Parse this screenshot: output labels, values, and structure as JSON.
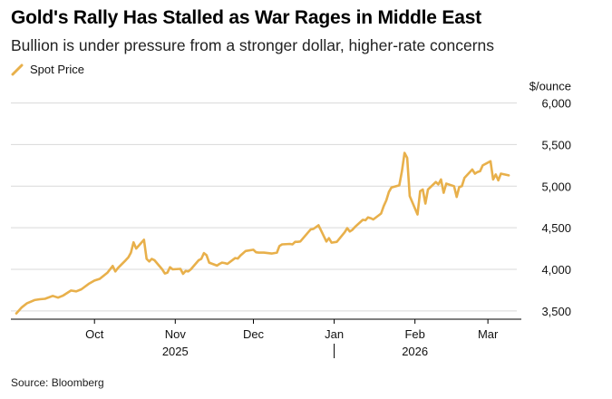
{
  "title": "Gold's Rally Has Stalled as War Rages in Middle East",
  "subtitle": "Bullion is under pressure from a stronger dollar, higher-rate concerns",
  "source": "Source: Bloomberg",
  "colors": {
    "line": "#E8B04B",
    "grid": "#D9D9D9",
    "axis": "#000000"
  },
  "chart_data": {
    "type": "line",
    "title": "Gold's Rally Has Stalled as War Rages in Middle East",
    "subtitle": "Bullion is under pressure from a stronger dollar, higher-rate concerns",
    "ylabel": "$/ounce",
    "ylim": [
      3400,
      6050
    ],
    "yticks": [
      3500,
      4000,
      4500,
      5000,
      5500,
      6000
    ],
    "ytick_labels": [
      "3,500",
      "4,000",
      "4,500",
      "5,000",
      "5,500",
      "6,000"
    ],
    "xlim": [
      "2025-09-01",
      "2026-03-10"
    ],
    "xticks": [
      {
        "date": "2025-10-01",
        "label": "Oct"
      },
      {
        "date": "2025-11-01",
        "label": "Nov"
      },
      {
        "date": "2025-12-01",
        "label": "Dec"
      },
      {
        "date": "2026-01-01",
        "label": "Jan"
      },
      {
        "date": "2026-02-01",
        "label": "Feb"
      },
      {
        "date": "2026-03-01",
        "label": "Mar"
      }
    ],
    "year_labels": [
      {
        "date": "2025-11-01",
        "label": "2025"
      },
      {
        "date": "2026-02-01",
        "label": "2026"
      }
    ],
    "year_divider": "2026-01-01",
    "grid": true,
    "legend": "top-left",
    "series": [
      {
        "name": "Spot Price",
        "data": [
          [
            "2025-09-01",
            3470
          ],
          [
            "2025-09-03",
            3540
          ],
          [
            "2025-09-05",
            3590
          ],
          [
            "2025-09-08",
            3630
          ],
          [
            "2025-09-10",
            3640
          ],
          [
            "2025-09-12",
            3645
          ],
          [
            "2025-09-15",
            3680
          ],
          [
            "2025-09-17",
            3660
          ],
          [
            "2025-09-19",
            3685
          ],
          [
            "2025-09-22",
            3745
          ],
          [
            "2025-09-24",
            3735
          ],
          [
            "2025-09-26",
            3760
          ],
          [
            "2025-09-29",
            3830
          ],
          [
            "2025-10-01",
            3865
          ],
          [
            "2025-10-03",
            3885
          ],
          [
            "2025-10-06",
            3960
          ],
          [
            "2025-10-08",
            4040
          ],
          [
            "2025-10-09",
            3975
          ],
          [
            "2025-10-10",
            4015
          ],
          [
            "2025-10-13",
            4110
          ],
          [
            "2025-10-14",
            4145
          ],
          [
            "2025-10-15",
            4200
          ],
          [
            "2025-10-16",
            4325
          ],
          [
            "2025-10-17",
            4250
          ],
          [
            "2025-10-20",
            4355
          ],
          [
            "2025-10-21",
            4125
          ],
          [
            "2025-10-22",
            4095
          ],
          [
            "2025-10-23",
            4125
          ],
          [
            "2025-10-24",
            4110
          ],
          [
            "2025-10-27",
            4000
          ],
          [
            "2025-10-28",
            3950
          ],
          [
            "2025-10-29",
            3960
          ],
          [
            "2025-10-30",
            4025
          ],
          [
            "2025-10-31",
            4000
          ],
          [
            "2025-11-03",
            4005
          ],
          [
            "2025-11-04",
            3945
          ],
          [
            "2025-11-05",
            3980
          ],
          [
            "2025-11-06",
            3975
          ],
          [
            "2025-11-07",
            4000
          ],
          [
            "2025-11-10",
            4110
          ],
          [
            "2025-11-11",
            4125
          ],
          [
            "2025-11-12",
            4195
          ],
          [
            "2025-11-13",
            4170
          ],
          [
            "2025-11-14",
            4080
          ],
          [
            "2025-11-17",
            4045
          ],
          [
            "2025-11-18",
            4065
          ],
          [
            "2025-11-19",
            4080
          ],
          [
            "2025-11-20",
            4075
          ],
          [
            "2025-11-21",
            4065
          ],
          [
            "2025-11-24",
            4135
          ],
          [
            "2025-11-25",
            4130
          ],
          [
            "2025-11-26",
            4165
          ],
          [
            "2025-11-28",
            4220
          ],
          [
            "2025-12-01",
            4235
          ],
          [
            "2025-12-02",
            4205
          ],
          [
            "2025-12-03",
            4200
          ],
          [
            "2025-12-05",
            4200
          ],
          [
            "2025-12-08",
            4190
          ],
          [
            "2025-12-10",
            4200
          ],
          [
            "2025-12-11",
            4280
          ],
          [
            "2025-12-12",
            4300
          ],
          [
            "2025-12-15",
            4305
          ],
          [
            "2025-12-16",
            4300
          ],
          [
            "2025-12-17",
            4330
          ],
          [
            "2025-12-18",
            4330
          ],
          [
            "2025-12-19",
            4335
          ],
          [
            "2025-12-22",
            4445
          ],
          [
            "2025-12-23",
            4480
          ],
          [
            "2025-12-24",
            4485
          ],
          [
            "2025-12-26",
            4530
          ],
          [
            "2025-12-29",
            4335
          ],
          [
            "2025-12-30",
            4375
          ],
          [
            "2025-12-31",
            4320
          ],
          [
            "2026-01-02",
            4330
          ],
          [
            "2026-01-05",
            4445
          ],
          [
            "2026-01-06",
            4495
          ],
          [
            "2026-01-07",
            4455
          ],
          [
            "2026-01-08",
            4475
          ],
          [
            "2026-01-09",
            4510
          ],
          [
            "2026-01-12",
            4595
          ],
          [
            "2026-01-13",
            4590
          ],
          [
            "2026-01-14",
            4625
          ],
          [
            "2026-01-15",
            4615
          ],
          [
            "2026-01-16",
            4600
          ],
          [
            "2026-01-19",
            4670
          ],
          [
            "2026-01-20",
            4760
          ],
          [
            "2026-01-21",
            4830
          ],
          [
            "2026-01-22",
            4930
          ],
          [
            "2026-01-23",
            4985
          ],
          [
            "2026-01-26",
            5010
          ],
          [
            "2026-01-27",
            5180
          ],
          [
            "2026-01-28",
            5400
          ],
          [
            "2026-01-29",
            5340
          ],
          [
            "2026-01-30",
            4880
          ],
          [
            "2026-02-02",
            4660
          ],
          [
            "2026-02-03",
            4940
          ],
          [
            "2026-02-04",
            4960
          ],
          [
            "2026-02-05",
            4790
          ],
          [
            "2026-02-06",
            4960
          ],
          [
            "2026-02-09",
            5050
          ],
          [
            "2026-02-10",
            5020
          ],
          [
            "2026-02-11",
            5080
          ],
          [
            "2026-02-12",
            4920
          ],
          [
            "2026-02-13",
            5030
          ],
          [
            "2026-02-16",
            5000
          ],
          [
            "2026-02-17",
            4870
          ],
          [
            "2026-02-18",
            4990
          ],
          [
            "2026-02-19",
            5000
          ],
          [
            "2026-02-20",
            5100
          ],
          [
            "2026-02-23",
            5200
          ],
          [
            "2026-02-24",
            5150
          ],
          [
            "2026-02-25",
            5170
          ],
          [
            "2026-02-26",
            5180
          ],
          [
            "2026-02-27",
            5250
          ],
          [
            "2026-03-02",
            5300
          ],
          [
            "2026-03-03",
            5080
          ],
          [
            "2026-03-04",
            5140
          ],
          [
            "2026-03-05",
            5070
          ],
          [
            "2026-03-06",
            5150
          ],
          [
            "2026-03-09",
            5130
          ]
        ]
      }
    ]
  }
}
